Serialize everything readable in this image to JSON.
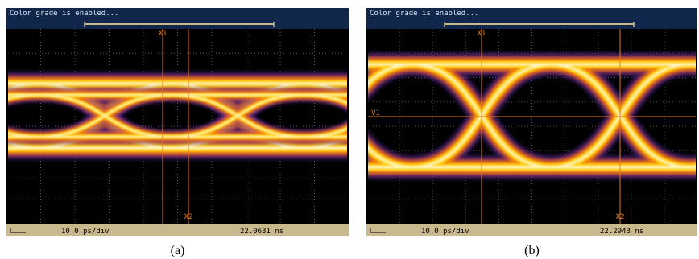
{
  "panels": [
    {
      "header": "Color grade is enabled...",
      "cursors": [
        "X1",
        "X2"
      ],
      "scale": "10.0 ps/div",
      "time": "22.0631 ns",
      "caption": "(a)"
    },
    {
      "header": "Color grade is enabled...",
      "cursors": [
        "X1",
        "X2",
        "V1"
      ],
      "scale": "10.0 ps/div",
      "time": "22.2943 ns",
      "caption": "(b)"
    }
  ]
}
